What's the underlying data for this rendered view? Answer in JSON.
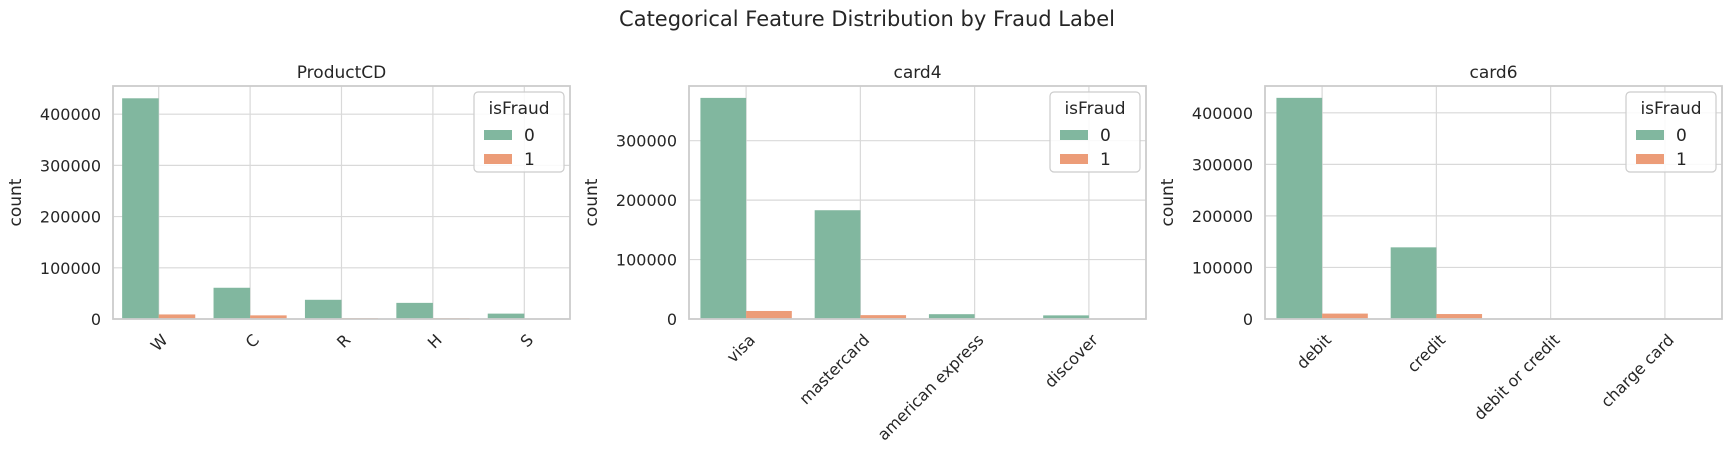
{
  "figure": {
    "title": "Categorical Feature Distribution by Fraud Label"
  },
  "colors": {
    "series_0": "#81b79f",
    "series_1": "#ec9c78",
    "grid": "#d9d9d9",
    "frame": "#cccccc"
  },
  "chart_data": [
    {
      "type": "bar",
      "title": "ProductCD",
      "xlabel": "",
      "ylabel": "count",
      "categories": [
        "W",
        "C",
        "R",
        "H",
        "S"
      ],
      "series": [
        {
          "name": "0",
          "values": [
            431000,
            61000,
            37500,
            31500,
            10500
          ]
        },
        {
          "name": "1",
          "values": [
            8900,
            7100,
            1900,
            1900,
            700
          ]
        }
      ],
      "ylim": [
        0,
        455000
      ],
      "yticks": [
        0,
        100000,
        200000,
        300000,
        400000
      ],
      "legend": {
        "title": "isFraud",
        "placement": "top-right"
      },
      "grid": true
    },
    {
      "type": "bar",
      "title": "card4",
      "xlabel": "",
      "ylabel": "count",
      "categories": [
        "visa",
        "mastercard",
        "american express",
        "discover"
      ],
      "series": [
        {
          "name": "0",
          "values": [
            372000,
            183000,
            8100,
            6100
          ]
        },
        {
          "name": "1",
          "values": [
            13500,
            6500,
            200,
            500
          ]
        }
      ],
      "ylim": [
        0,
        392000
      ],
      "yticks": [
        0,
        100000,
        200000,
        300000
      ],
      "legend": {
        "title": "isFraud",
        "placement": "top-right"
      },
      "grid": true
    },
    {
      "type": "bar",
      "title": "card6",
      "xlabel": "",
      "ylabel": "count",
      "categories": [
        "debit",
        "credit",
        "debit or credit",
        "charge card"
      ],
      "series": [
        {
          "name": "0",
          "values": [
            429000,
            139000,
            30,
            15
          ]
        },
        {
          "name": "1",
          "values": [
            10500,
            9600,
            0,
            0
          ]
        }
      ],
      "ylim": [
        0,
        452000
      ],
      "yticks": [
        0,
        100000,
        200000,
        300000,
        400000
      ],
      "legend": {
        "title": "isFraud",
        "placement": "top-right"
      },
      "grid": true
    }
  ]
}
